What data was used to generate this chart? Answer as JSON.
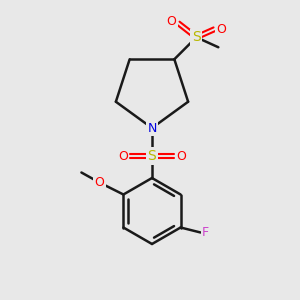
{
  "background_color": "#e8e8e8",
  "bond_color": "#1a1a1a",
  "bond_lw": 1.8,
  "atom_colors": {
    "S": "#b8b800",
    "O": "#ff0000",
    "N": "#0000e0",
    "F": "#cc44cc",
    "C": "#1a1a1a"
  },
  "figsize": [
    3.0,
    3.0
  ],
  "dpi": 100,
  "scale": 1.0
}
